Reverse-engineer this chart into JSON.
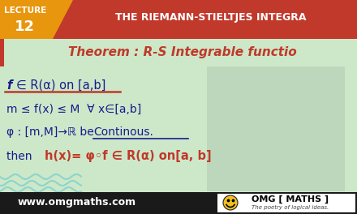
{
  "bg_color": "#cde8c8",
  "header_red_color": "#c0392b",
  "lecture_bg": "#e8960e",
  "header_title": "THE RIEMANN-STIELTJES INTEGRA",
  "theorem_title": "Theorem : R-S Integrable functio",
  "line1a": "f",
  "line1b": "∈ R(α) on [a,b]",
  "line2": "m ≤ f(x) ≤ M  ∀ x∈[a,b]",
  "line3a": "φ : [m,M]→ℝ be ",
  "line3b": "Continous.",
  "line4a": "then ",
  "line4b": "h(x)= φ◦f ∈ R(α) on[a, b]",
  "website": "www.omgmaths.com",
  "logo_text": "OMG [ MATHS ]",
  "logo_sub": "The poetry of logical ideas.",
  "text_dark": "#1a1a8c",
  "text_red": "#c0392b",
  "footer_bg": "#1a1a1a",
  "wave_color": "#7ecfcf"
}
